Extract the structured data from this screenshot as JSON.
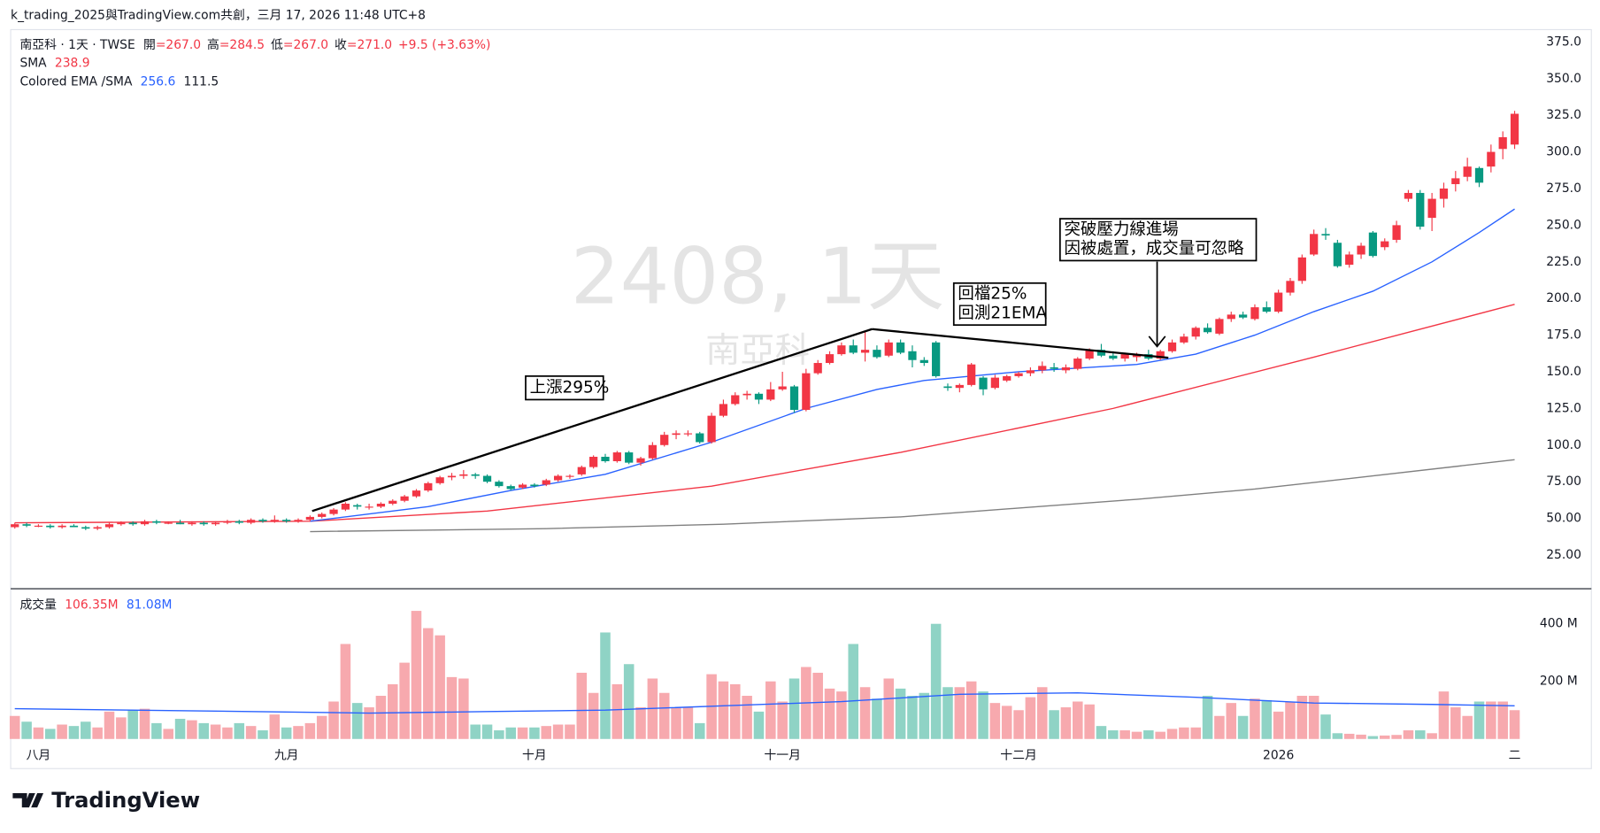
{
  "header": {
    "attribution": "k_trading_2025與TradingView.com共創，三月 17, 2026 11:48 UTC+8"
  },
  "legend": {
    "symbol": "南亞科 · 1天 · TWSE",
    "ohlc": [
      {
        "label": "開",
        "value": "=267.0"
      },
      {
        "label": "高",
        "value": "=284.5"
      },
      {
        "label": "低",
        "value": "=267.0"
      },
      {
        "label": "收",
        "value": "=271.0"
      }
    ],
    "change": "+9.5 (+3.63%)",
    "sma_label": "SMA",
    "sma_value": "238.9",
    "ema_label": "Colored EMA /SMA",
    "ema_values": [
      "256.6",
      "111.5"
    ]
  },
  "watermark": {
    "symbol": "2408, 1天",
    "name": "南亞科"
  },
  "annotations": {
    "rise": "上漲295%",
    "pullback": [
      "回檔25%",
      "回測21EMA"
    ],
    "entry": [
      "突破壓力線進場",
      "因被處置，成交量可忽略"
    ]
  },
  "logo": "TradingView",
  "chart_data": [
    {
      "type": "candlestick",
      "up_color": "#f23645",
      "down_color": "#089981",
      "xlim": [
        -0.35,
        127.7
      ],
      "ylim": [
        2,
        383.4
      ],
      "grid": false,
      "yticks": [
        {
          "value": 25,
          "label": "25.00"
        },
        {
          "value": 50,
          "label": "50.00"
        },
        {
          "value": 75,
          "label": "75.00"
        },
        {
          "value": 100,
          "label": "100.0"
        },
        {
          "value": 125,
          "label": "125.0"
        },
        {
          "value": 150,
          "label": "150.0"
        },
        {
          "value": 175,
          "label": "175.0"
        },
        {
          "value": 200,
          "label": "200.0"
        },
        {
          "value": 225,
          "label": "225.0"
        },
        {
          "value": 250,
          "label": "250.0"
        },
        {
          "value": 275,
          "label": "275.0"
        },
        {
          "value": 300,
          "label": "300.0"
        },
        {
          "value": 325,
          "label": "325.0"
        },
        {
          "value": 350,
          "label": "350.0"
        },
        {
          "value": 375,
          "label": "375.0"
        }
      ],
      "xticks": [
        {
          "value": 2,
          "label": "八月"
        },
        {
          "value": 23,
          "label": "九月"
        },
        {
          "value": 44,
          "label": "十月"
        },
        {
          "value": 65,
          "label": "十一月"
        },
        {
          "value": 85,
          "label": "十二月"
        },
        {
          "value": 107,
          "label": "2026"
        },
        {
          "value": 127,
          "label": "二"
        }
      ],
      "ohlc": [
        [
          44,
          47,
          43,
          46
        ],
        [
          46,
          47,
          44,
          45
        ],
        [
          45,
          46,
          44,
          45
        ],
        [
          45,
          46,
          43,
          44
        ],
        [
          44,
          46,
          43,
          45
        ],
        [
          45,
          46,
          44,
          44
        ],
        [
          44,
          45,
          42,
          43
        ],
        [
          43,
          45,
          42,
          44
        ],
        [
          44,
          47,
          43,
          46
        ],
        [
          46,
          48,
          45,
          47
        ],
        [
          47,
          48,
          45,
          46
        ],
        [
          46,
          49,
          45,
          48
        ],
        [
          48,
          49,
          46,
          47
        ],
        [
          47,
          48,
          46,
          47
        ],
        [
          47,
          49,
          46,
          46
        ],
        [
          46,
          48,
          45,
          47
        ],
        [
          47,
          48,
          45,
          46
        ],
        [
          46,
          48,
          45,
          47
        ],
        [
          47,
          49,
          46,
          48
        ],
        [
          48,
          49,
          46,
          47
        ],
        [
          47,
          50,
          46,
          49
        ],
        [
          49,
          50,
          47,
          48
        ],
        [
          48,
          52,
          47,
          49
        ],
        [
          49,
          50,
          47,
          48
        ],
        [
          48,
          50,
          47,
          49
        ],
        [
          49,
          52,
          48,
          51
        ],
        [
          51,
          54,
          50,
          53
        ],
        [
          53,
          57,
          52,
          56
        ],
        [
          56,
          61,
          55,
          60
        ],
        [
          59,
          60,
          56,
          58
        ],
        [
          58,
          60,
          56,
          58
        ],
        [
          58,
          61,
          57,
          60
        ],
        [
          60,
          63,
          59,
          62
        ],
        [
          62,
          66,
          61,
          65
        ],
        [
          65,
          70,
          64,
          69
        ],
        [
          69,
          75,
          68,
          74
        ],
        [
          74,
          79,
          73,
          78
        ],
        [
          78,
          81,
          76,
          79
        ],
        [
          79,
          83,
          77,
          80
        ],
        [
          80,
          81,
          77,
          79
        ],
        [
          79,
          80,
          74,
          75
        ],
        [
          75,
          76,
          71,
          72
        ],
        [
          72,
          73,
          69,
          70
        ],
        [
          71,
          74,
          70,
          73
        ],
        [
          73,
          74,
          71,
          72
        ],
        [
          73,
          77,
          72,
          76
        ],
        [
          76,
          80,
          75,
          79
        ],
        [
          79,
          80,
          77,
          79
        ],
        [
          80,
          86,
          79,
          85
        ],
        [
          85,
          93,
          84,
          92
        ],
        [
          92,
          94,
          88,
          89
        ],
        [
          89,
          96,
          88,
          95
        ],
        [
          95,
          96,
          87,
          88
        ],
        [
          88,
          92,
          86,
          91
        ],
        [
          91,
          102,
          90,
          100
        ],
        [
          100,
          109,
          99,
          107
        ],
        [
          107,
          110,
          104,
          108
        ],
        [
          108,
          110,
          106,
          108
        ],
        [
          108,
          109,
          101,
          102
        ],
        [
          102,
          122,
          101,
          120
        ],
        [
          120,
          131,
          119,
          128
        ],
        [
          128,
          136,
          127,
          134
        ],
        [
          134,
          137,
          131,
          135
        ],
        [
          135,
          136,
          128,
          131
        ],
        [
          131,
          143,
          130,
          138
        ],
        [
          138,
          150,
          137,
          140
        ],
        [
          140,
          141,
          122,
          124
        ],
        [
          124,
          152,
          123,
          149
        ],
        [
          149,
          158,
          148,
          156
        ],
        [
          156,
          164,
          155,
          162
        ],
        [
          162,
          170,
          161,
          168
        ],
        [
          168,
          172,
          162,
          163
        ],
        [
          163,
          178,
          157,
          165
        ],
        [
          165,
          168,
          159,
          160
        ],
        [
          161,
          172,
          160,
          170
        ],
        [
          170,
          172,
          162,
          163
        ],
        [
          164,
          168,
          153,
          158
        ],
        [
          158,
          160,
          154,
          156
        ],
        [
          170,
          171,
          146,
          147
        ],
        [
          140,
          142,
          137,
          139
        ],
        [
          139,
          142,
          136,
          141
        ],
        [
          141,
          156,
          140,
          155
        ],
        [
          146,
          147,
          134,
          138
        ],
        [
          139,
          148,
          138,
          146
        ],
        [
          144,
          148,
          143,
          147
        ],
        [
          147,
          150,
          146,
          149
        ],
        [
          149,
          153,
          147,
          151
        ],
        [
          151,
          157,
          149,
          154
        ],
        [
          153,
          156,
          150,
          152
        ],
        [
          151,
          155,
          149,
          153
        ],
        [
          152,
          160,
          151,
          159
        ],
        [
          159,
          166,
          158,
          165
        ],
        [
          165,
          169,
          160,
          161
        ],
        [
          161,
          164,
          158,
          159
        ],
        [
          159,
          163,
          157,
          162
        ],
        [
          160,
          163,
          157,
          162
        ],
        [
          162,
          165,
          158,
          159
        ],
        [
          159,
          165,
          158,
          164
        ],
        [
          164,
          172,
          163,
          170
        ],
        [
          170,
          176,
          169,
          174
        ],
        [
          174,
          181,
          172,
          180
        ],
        [
          180,
          183,
          176,
          177
        ],
        [
          176,
          187,
          175,
          186
        ],
        [
          186,
          191,
          184,
          189
        ],
        [
          189,
          191,
          186,
          187
        ],
        [
          186,
          196,
          185,
          194
        ],
        [
          194,
          198,
          190,
          191
        ],
        [
          191,
          206,
          190,
          204
        ],
        [
          204,
          214,
          202,
          212
        ],
        [
          212,
          230,
          210,
          228
        ],
        [
          230,
          247,
          229,
          244
        ],
        [
          244,
          248,
          240,
          243
        ],
        [
          238,
          240,
          221,
          222
        ],
        [
          223,
          232,
          221,
          230
        ],
        [
          230,
          238,
          227,
          236
        ],
        [
          245,
          246,
          228,
          229
        ],
        [
          235,
          241,
          233,
          239
        ],
        [
          240,
          253,
          238,
          250
        ],
        [
          268,
          274,
          266,
          272
        ],
        [
          272,
          274,
          247,
          249
        ],
        [
          255,
          272,
          246,
          268
        ],
        [
          268,
          279,
          262,
          275
        ],
        [
          278,
          287,
          273,
          282
        ],
        [
          283,
          296,
          280,
          290
        ],
        [
          289,
          290,
          276,
          279
        ],
        [
          290,
          305,
          286,
          300
        ],
        [
          302,
          314,
          295,
          310
        ],
        [
          305,
          328,
          302,
          326
        ]
      ],
      "series": [
        {
          "color": "#808080",
          "x": [
            25,
            45,
            60,
            75,
            85,
            95,
            105,
            115,
            127
          ],
          "values": [
            41,
            43,
            46,
            51,
            57,
            63,
            70,
            79,
            90
          ]
        },
        {
          "color": "#f23645",
          "x": [
            0,
            25,
            40,
            59,
            75,
            93,
            110,
            127
          ],
          "values": [
            47,
            48,
            55,
            72,
            95,
            125,
            160,
            196
          ]
        },
        {
          "color": "#2962ff",
          "x": [
            25,
            35,
            42,
            50,
            59,
            67,
            73,
            77,
            85,
            95,
            100,
            105,
            110,
            115,
            120,
            124,
            127
          ],
          "values": [
            48,
            58,
            69,
            80,
            102,
            125,
            138,
            144,
            150,
            155,
            162,
            175,
            191,
            205,
            225,
            245,
            261
          ]
        }
      ]
    },
    {
      "type": "bar",
      "title": "成交量",
      "legend_values": [
        "106.35M",
        "81.08M"
      ],
      "legend_colors": [
        "#f23645",
        "#2962ff"
      ],
      "up_color": "#f7a9ae",
      "down_color": "#8fd3c5",
      "ylim": [
        0,
        490
      ],
      "yticks": [
        {
          "value": 200,
          "label": "200 M"
        },
        {
          "value": 400,
          "label": "400 M"
        }
      ],
      "values": [
        80,
        60,
        40,
        35,
        50,
        45,
        60,
        40,
        95,
        75,
        100,
        105,
        55,
        35,
        70,
        65,
        55,
        50,
        40,
        55,
        45,
        30,
        85,
        40,
        45,
        55,
        80,
        130,
        330,
        125,
        110,
        150,
        190,
        265,
        445,
        385,
        360,
        215,
        210,
        50,
        50,
        30,
        40,
        40,
        40,
        45,
        50,
        50,
        230,
        160,
        370,
        190,
        260,
        110,
        210,
        160,
        110,
        110,
        55,
        225,
        200,
        190,
        150,
        95,
        200,
        130,
        210,
        250,
        230,
        175,
        165,
        330,
        180,
        140,
        210,
        175,
        150,
        160,
        400,
        180,
        180,
        200,
        165,
        125,
        115,
        100,
        145,
        180,
        100,
        110,
        130,
        120,
        45,
        30,
        30,
        25,
        30,
        25,
        35,
        40,
        40,
        150,
        80,
        125,
        80,
        140,
        135,
        95,
        130,
        150,
        150,
        85,
        20,
        18,
        15,
        10,
        12,
        14,
        30,
        30,
        20,
        165,
        110,
        80,
        130,
        130,
        130,
        100
      ],
      "series": [
        {
          "color": "#2962ff",
          "x": [
            0,
            20,
            30,
            40,
            50,
            60,
            70,
            80,
            90,
            100,
            110,
            120,
            127
          ],
          "values": [
            105,
            95,
            90,
            95,
            100,
            115,
            130,
            155,
            160,
            145,
            125,
            120,
            115
          ]
        }
      ]
    }
  ]
}
